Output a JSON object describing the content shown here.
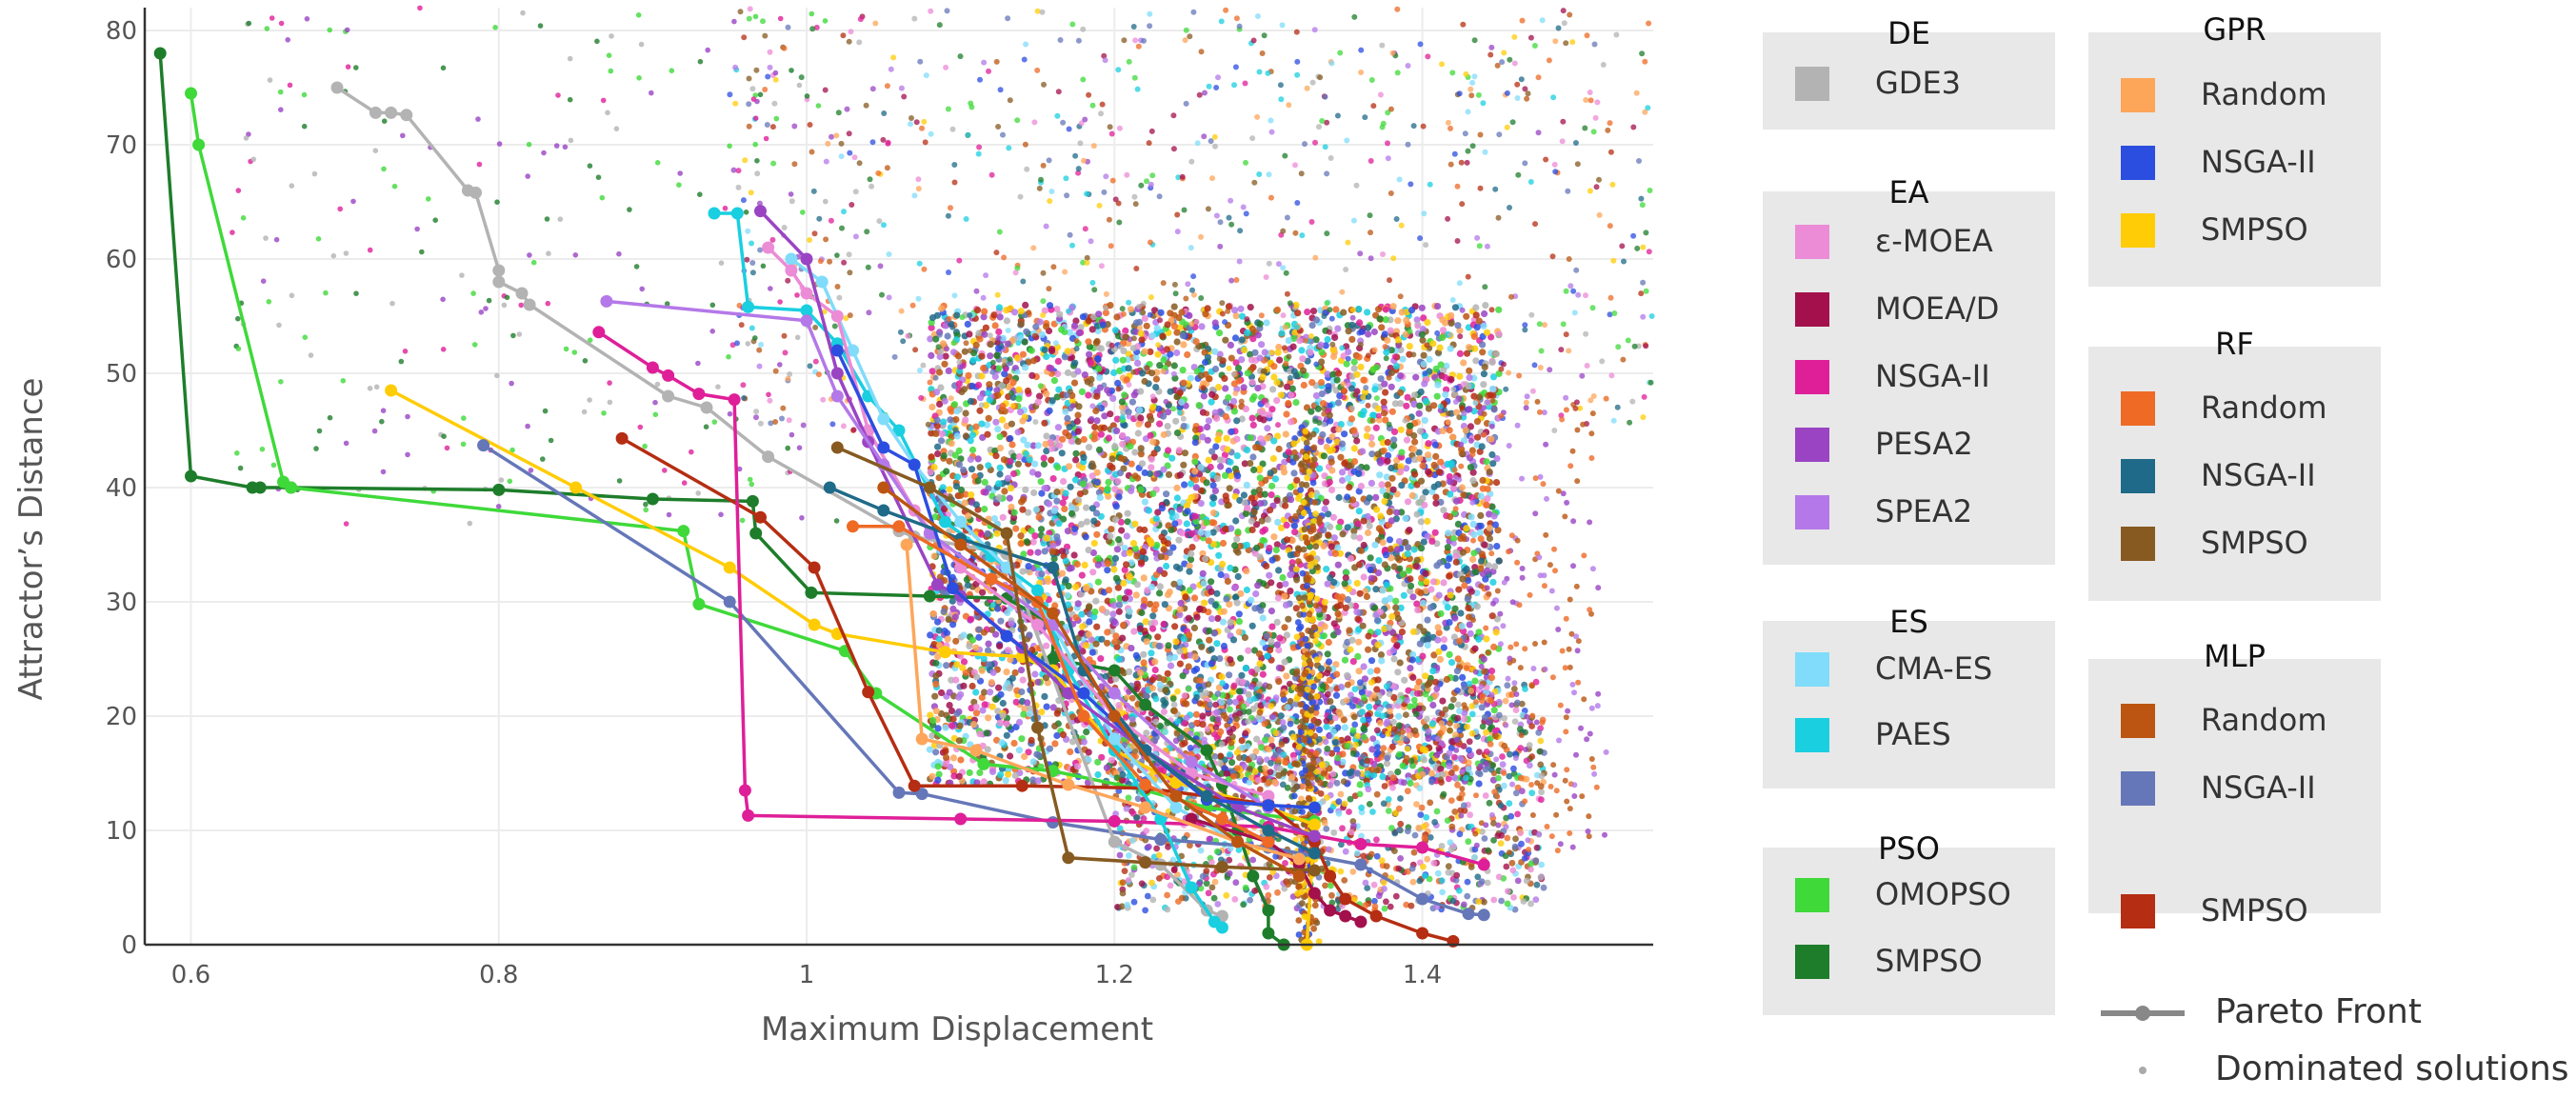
{
  "chart_data": {
    "type": "scatter",
    "xlabel": "Maximum Displacement",
    "ylabel": "Attractor’s Distance",
    "xlim": [
      0.57,
      1.55
    ],
    "ylim": [
      0,
      82
    ],
    "x_ticks": [
      "0.6",
      "0.8",
      "1",
      "1.2",
      "1.4"
    ],
    "y_ticks": [
      "0",
      "10",
      "20",
      "30",
      "40",
      "50",
      "60",
      "70",
      "80"
    ],
    "grid": true,
    "legend_placement": "right",
    "groups": [
      {
        "title": "DE",
        "items": [
          {
            "name": "GDE3",
            "color": "#b3b3b3"
          }
        ]
      },
      {
        "title": "EA",
        "items": [
          {
            "name": "ε-MOEA",
            "color": "#ec8bd6"
          },
          {
            "name": "MOEA/D",
            "color": "#a3104c"
          },
          {
            "name": "NSGA-II",
            "color": "#df1f98"
          },
          {
            "name": "PESA2",
            "color": "#9a44c4"
          },
          {
            "name": "SPEA2",
            "color": "#b478e8"
          }
        ]
      },
      {
        "title": "ES",
        "items": [
          {
            "name": "CMA-ES",
            "color": "#80dcfa"
          },
          {
            "name": "PAES",
            "color": "#19cfe0"
          }
        ]
      },
      {
        "title": "PSO",
        "items": [
          {
            "name": "OMOPSO",
            "color": "#3fd93a"
          },
          {
            "name": "SMPSO",
            "color": "#1e7d2a"
          }
        ]
      },
      {
        "title": "GPR",
        "items": [
          {
            "name": "Random",
            "color": "#fda65a"
          },
          {
            "name": "NSGA-II",
            "color": "#2c4ee0"
          },
          {
            "name": "SMPSO",
            "color": "#ffcc05"
          }
        ]
      },
      {
        "title": "RF",
        "items": [
          {
            "name": "Random",
            "color": "#ee6a25"
          },
          {
            "name": "NSGA-II",
            "color": "#1f6a88"
          },
          {
            "name": "SMPSO",
            "color": "#865a21"
          }
        ]
      },
      {
        "title": "MLP",
        "items": [
          {
            "name": "Random",
            "color": "#bb5511"
          },
          {
            "name": "NSGA-II",
            "color": "#6577b8"
          },
          {
            "name": "SMPSO",
            "color": "#b52d12"
          }
        ]
      }
    ],
    "key": [
      {
        "label": "Pareto Front",
        "symbol": "line-marker",
        "color": "#888888"
      },
      {
        "label": "Dominated solutions",
        "symbol": "dot",
        "color": "#aaaaaa"
      }
    ],
    "pareto_fronts": [
      {
        "group": "PSO",
        "name": "SMPSO",
        "color": "#1e7d2a",
        "points": [
          [
            0.58,
            78
          ],
          [
            0.6,
            41
          ],
          [
            0.64,
            40
          ],
          [
            0.645,
            40
          ],
          [
            0.665,
            40
          ],
          [
            0.8,
            39.8
          ],
          [
            0.9,
            39
          ],
          [
            0.965,
            38.8
          ],
          [
            0.967,
            36
          ],
          [
            1.003,
            30.8
          ],
          [
            1.08,
            30.5
          ],
          [
            1.13,
            30.3
          ],
          [
            1.16,
            28
          ],
          [
            1.16,
            25
          ],
          [
            1.2,
            24
          ],
          [
            1.22,
            21
          ],
          [
            1.26,
            17
          ],
          [
            1.27,
            14
          ],
          [
            1.28,
            10
          ],
          [
            1.29,
            6
          ],
          [
            1.3,
            3
          ],
          [
            1.3,
            1
          ],
          [
            1.31,
            0
          ]
        ]
      },
      {
        "group": "PSO",
        "name": "OMOPSO",
        "color": "#3fd93a",
        "points": [
          [
            0.6,
            74.5
          ],
          [
            0.605,
            70
          ],
          [
            0.66,
            40.5
          ],
          [
            0.665,
            40
          ],
          [
            0.92,
            36.2
          ],
          [
            0.93,
            29.8
          ],
          [
            1.025,
            25.7
          ],
          [
            1.045,
            22
          ],
          [
            1.115,
            15.8
          ],
          [
            1.16,
            15.2
          ],
          [
            1.22,
            13.5
          ],
          [
            1.26,
            12
          ],
          [
            1.33,
            10.8
          ]
        ]
      },
      {
        "group": "GPR",
        "name": "SMPSO",
        "color": "#ffcc05",
        "points": [
          [
            0.73,
            48.5
          ],
          [
            0.85,
            40
          ],
          [
            0.95,
            33
          ],
          [
            1.005,
            28
          ],
          [
            1.02,
            27.2
          ],
          [
            1.09,
            25.6
          ],
          [
            1.14,
            25.2
          ],
          [
            1.16,
            24
          ],
          [
            1.2,
            17
          ],
          [
            1.24,
            14.2
          ],
          [
            1.3,
            12
          ],
          [
            1.33,
            10.5
          ],
          [
            1.325,
            0
          ]
        ]
      },
      {
        "group": "MLP",
        "name": "NSGA-II",
        "color": "#6577b8",
        "points": [
          [
            0.79,
            43.7
          ],
          [
            0.95,
            30
          ],
          [
            1.06,
            13.3
          ],
          [
            1.075,
            13.2
          ],
          [
            1.16,
            10.7
          ],
          [
            1.23,
            9.2
          ],
          [
            1.3,
            8.5
          ],
          [
            1.36,
            7
          ],
          [
            1.4,
            4
          ],
          [
            1.43,
            2.7
          ],
          [
            1.44,
            2.6
          ]
        ]
      },
      {
        "group": "DE",
        "name": "GDE3",
        "color": "#b3b3b3",
        "points": [
          [
            0.695,
            75
          ],
          [
            0.72,
            72.8
          ],
          [
            0.73,
            72.8
          ],
          [
            0.74,
            72.6
          ],
          [
            0.78,
            66
          ],
          [
            0.785,
            65.8
          ],
          [
            0.8,
            59
          ],
          [
            0.8,
            58
          ],
          [
            0.815,
            57
          ],
          [
            0.82,
            56
          ],
          [
            0.91,
            48
          ],
          [
            0.935,
            47
          ],
          [
            0.975,
            42.7
          ],
          [
            1.06,
            36.2
          ],
          [
            1.07,
            35.7
          ],
          [
            1.13,
            34.2
          ],
          [
            1.2,
            9
          ],
          [
            1.23,
            7
          ],
          [
            1.26,
            3
          ],
          [
            1.27,
            2.5
          ]
        ]
      },
      {
        "group": "MLP",
        "name": "SMPSO",
        "color": "#b52d12",
        "points": [
          [
            0.88,
            44.3
          ],
          [
            0.97,
            37.4
          ],
          [
            1.005,
            33
          ],
          [
            1.04,
            22.1
          ],
          [
            1.07,
            13.9
          ],
          [
            1.14,
            13.9
          ],
          [
            1.22,
            13.7
          ],
          [
            1.3,
            12.3
          ],
          [
            1.33,
            9
          ],
          [
            1.34,
            6
          ],
          [
            1.35,
            4
          ],
          [
            1.37,
            2.5
          ],
          [
            1.4,
            1
          ],
          [
            1.42,
            0.3
          ]
        ]
      },
      {
        "group": "EA",
        "name": "NSGA-II",
        "color": "#df1f98",
        "points": [
          [
            0.865,
            53.6
          ],
          [
            0.9,
            50.5
          ],
          [
            0.91,
            49.8
          ],
          [
            0.93,
            48.2
          ],
          [
            0.953,
            47.7
          ],
          [
            0.96,
            13.5
          ],
          [
            0.962,
            11.3
          ],
          [
            1.1,
            11
          ],
          [
            1.2,
            10.8
          ],
          [
            1.3,
            10.3
          ],
          [
            1.36,
            8.8
          ],
          [
            1.4,
            8.5
          ],
          [
            1.44,
            7
          ]
        ]
      },
      {
        "group": "ES",
        "name": "PAES",
        "color": "#19cfe0",
        "points": [
          [
            0.94,
            64
          ],
          [
            0.955,
            64
          ],
          [
            0.962,
            55.8
          ],
          [
            1,
            55.5
          ],
          [
            1.02,
            52.6
          ],
          [
            1.04,
            48
          ],
          [
            1.06,
            45
          ],
          [
            1.09,
            37
          ],
          [
            1.12,
            34
          ],
          [
            1.15,
            31
          ],
          [
            1.17,
            24
          ],
          [
            1.2,
            17
          ],
          [
            1.23,
            11
          ],
          [
            1.25,
            5
          ],
          [
            1.265,
            2
          ],
          [
            1.27,
            1.5
          ]
        ]
      },
      {
        "group": "ES",
        "name": "CMA-ES",
        "color": "#80dcfa",
        "points": [
          [
            0.99,
            60
          ],
          [
            1.01,
            58
          ],
          [
            1.03,
            52
          ],
          [
            1.05,
            46
          ],
          [
            1.07,
            42
          ],
          [
            1.1,
            37
          ],
          [
            1.13,
            33
          ],
          [
            1.16,
            28
          ],
          [
            1.2,
            18
          ],
          [
            1.24,
            12
          ],
          [
            1.28,
            9
          ]
        ]
      },
      {
        "group": "EA",
        "name": "ε-MOEA",
        "color": "#ec8bd6",
        "points": [
          [
            0.975,
            61
          ],
          [
            0.99,
            59
          ],
          [
            1.0,
            57
          ],
          [
            1.02,
            55
          ],
          [
            1.04,
            45
          ],
          [
            1.07,
            38
          ],
          [
            1.1,
            33
          ],
          [
            1.15,
            28
          ],
          [
            1.2,
            20
          ],
          [
            1.25,
            15
          ],
          [
            1.3,
            13
          ]
        ]
      },
      {
        "group": "EA",
        "name": "PESA2",
        "color": "#9a44c4",
        "points": [
          [
            0.97,
            64.2
          ],
          [
            1.0,
            60
          ],
          [
            1.02,
            50
          ],
          [
            1.04,
            44
          ],
          [
            1.085,
            31.5
          ],
          [
            1.1,
            30.5
          ],
          [
            1.14,
            26
          ],
          [
            1.17,
            22
          ],
          [
            1.22,
            17
          ],
          [
            1.28,
            12
          ],
          [
            1.33,
            9.5
          ]
        ]
      },
      {
        "group": "EA",
        "name": "SPEA2",
        "color": "#b478e8",
        "points": [
          [
            0.87,
            56.3
          ],
          [
            1.0,
            54.6
          ],
          [
            1.02,
            48
          ],
          [
            1.05,
            42
          ],
          [
            1.08,
            36
          ],
          [
            1.12,
            32
          ],
          [
            1.16,
            28
          ],
          [
            1.2,
            22
          ],
          [
            1.25,
            16
          ],
          [
            1.3,
            12
          ]
        ]
      },
      {
        "group": "EA",
        "name": "MOEA/D",
        "color": "#a3104c",
        "points": [
          [
            1.25,
            11
          ],
          [
            1.3,
            9
          ],
          [
            1.32,
            7
          ],
          [
            1.33,
            4.5
          ],
          [
            1.34,
            3
          ],
          [
            1.35,
            2.5
          ],
          [
            1.36,
            2
          ]
        ]
      },
      {
        "group": "GPR",
        "name": "NSGA-II",
        "color": "#2c4ee0",
        "points": [
          [
            1.02,
            52
          ],
          [
            1.05,
            43.5
          ],
          [
            1.07,
            42
          ],
          [
            1.095,
            31.2
          ],
          [
            1.13,
            27
          ],
          [
            1.18,
            22
          ],
          [
            1.22,
            17
          ],
          [
            1.26,
            12.7
          ],
          [
            1.3,
            12.2
          ],
          [
            1.33,
            12
          ]
        ]
      },
      {
        "group": "GPR",
        "name": "Random",
        "color": "#fda65a",
        "points": [
          [
            1.065,
            35
          ],
          [
            1.075,
            18
          ],
          [
            1.11,
            17
          ],
          [
            1.17,
            14
          ],
          [
            1.22,
            12
          ],
          [
            1.28,
            9
          ],
          [
            1.32,
            7.5
          ]
        ]
      },
      {
        "group": "RF",
        "name": "Random",
        "color": "#ee6a25",
        "points": [
          [
            1.03,
            36.6
          ],
          [
            1.06,
            36.6
          ],
          [
            1.12,
            32
          ],
          [
            1.15,
            30
          ],
          [
            1.18,
            20
          ],
          [
            1.22,
            14
          ],
          [
            1.27,
            11
          ],
          [
            1.3,
            9
          ]
        ]
      },
      {
        "group": "RF",
        "name": "NSGA-II",
        "color": "#1f6a88",
        "points": [
          [
            1.015,
            40
          ],
          [
            1.05,
            38
          ],
          [
            1.1,
            35.5
          ],
          [
            1.16,
            33
          ],
          [
            1.18,
            24
          ],
          [
            1.22,
            17
          ],
          [
            1.26,
            13
          ],
          [
            1.3,
            10
          ],
          [
            1.33,
            8
          ]
        ]
      },
      {
        "group": "RF",
        "name": "SMPSO",
        "color": "#865a21",
        "points": [
          [
            1.02,
            43.5
          ],
          [
            1.08,
            40
          ],
          [
            1.13,
            36
          ],
          [
            1.15,
            19
          ],
          [
            1.17,
            7.6
          ],
          [
            1.22,
            7.2
          ],
          [
            1.27,
            6.8
          ],
          [
            1.33,
            6.5
          ]
        ]
      },
      {
        "group": "MLP",
        "name": "Random",
        "color": "#bb5511",
        "points": [
          [
            1.05,
            40
          ],
          [
            1.1,
            35
          ],
          [
            1.16,
            29
          ],
          [
            1.2,
            20
          ],
          [
            1.24,
            13
          ],
          [
            1.28,
            9
          ],
          [
            1.32,
            6
          ]
        ]
      }
    ]
  }
}
